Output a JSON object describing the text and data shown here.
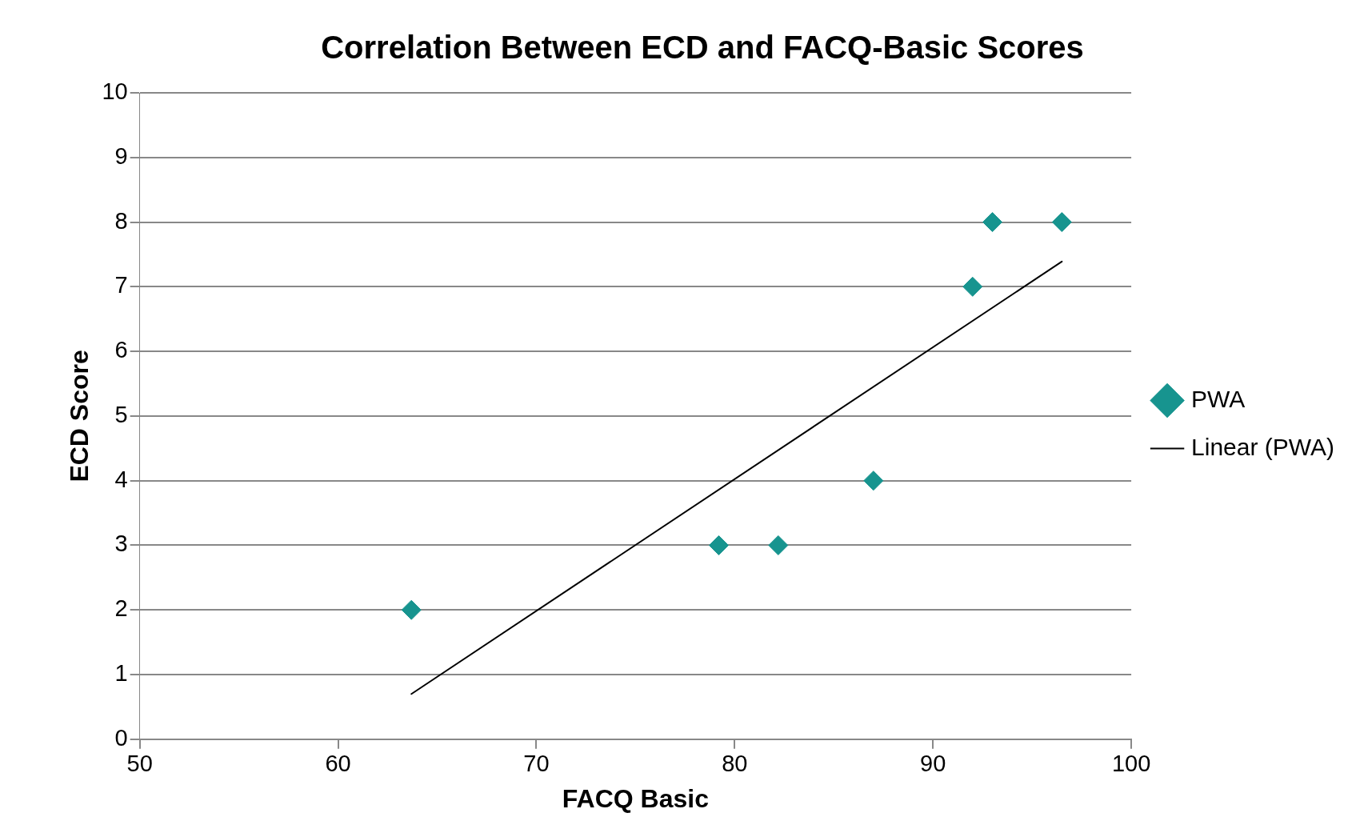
{
  "chart_data": {
    "type": "scatter",
    "title": "Correlation Between ECD and FACQ-Basic Scores",
    "xlabel": "FACQ Basic",
    "ylabel": "ECD Score",
    "series": [
      {
        "name": "PWA",
        "type": "scatter",
        "color": "#17948f",
        "marker": "diamond",
        "x": [
          63.7,
          79.2,
          82.2,
          87.0,
          92.0,
          93.0,
          96.5
        ],
        "values": [
          2,
          3,
          3,
          4,
          7,
          8,
          8
        ]
      },
      {
        "name": "Linear (PWA)",
        "type": "line",
        "color": "#000000",
        "marker": "none",
        "x": [
          63.7,
          96.5
        ],
        "values": [
          0.7,
          7.39
        ]
      }
    ],
    "xlim": [
      50,
      100
    ],
    "xticks": [
      50,
      60,
      70,
      80,
      90,
      100
    ],
    "ylim": [
      0,
      10
    ],
    "yticks": [
      0,
      1,
      2,
      3,
      4,
      5,
      6,
      7,
      8,
      9,
      10
    ],
    "grid": "y",
    "legend": "right"
  }
}
